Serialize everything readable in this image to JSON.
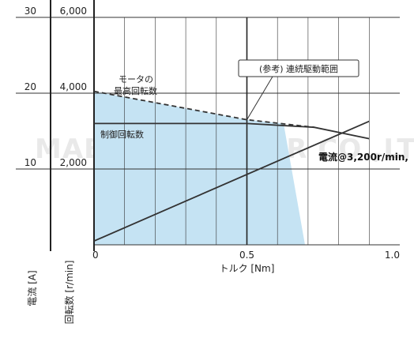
{
  "chart_data": {
    "type": "line",
    "xlabel": "トルク [Nm]",
    "ylabel_current": "電流 [A]",
    "ylabel_speed": "回転数 [r/min]",
    "xlim": [
      0,
      1.0
    ],
    "ylim_speed": [
      0,
      6000
    ],
    "ylim_current": [
      0,
      30
    ],
    "x_ticks": [
      "0",
      "0.5",
      "1.0"
    ],
    "speed_ticks": [
      "2,000",
      "4,000",
      "6,000"
    ],
    "current_ticks": [
      "10",
      "20",
      "30"
    ],
    "grid": true,
    "series": [
      {
        "name": "電流@3,200r/min",
        "style": "solid",
        "axis": "current",
        "x": [
          0,
          0.9
        ],
        "y": [
          0.5,
          16.3
        ]
      },
      {
        "name": "モータの最高回転数",
        "style": "dashed",
        "axis": "speed",
        "x": [
          0,
          0.5,
          0.72
        ],
        "y": [
          4050,
          3300,
          3100
        ]
      },
      {
        "name": "制御回転数",
        "style": "solid",
        "axis": "speed",
        "x": [
          0,
          0.5,
          0.72,
          0.9
        ],
        "y": [
          3200,
          3200,
          3100,
          2800
        ]
      }
    ],
    "region": {
      "name": "(参考) 連続駆動範囲",
      "color": "#c5e3f3",
      "x": [
        0,
        0,
        0.5,
        0.62,
        0.69,
        0
      ],
      "y": [
        0,
        4050,
        3300,
        3200,
        0,
        0
      ]
    },
    "annotations": {
      "max_speed": [
        "モータの",
        "最高回転数"
      ],
      "control_speed": "制御回転数",
      "current": "電流@3,200r/min,",
      "region": "(参考) 連続駆動範囲"
    },
    "colors": {
      "line": "#333333",
      "grid": "#333333",
      "fill": "#c5e3f3"
    }
  },
  "watermark": "MABUCHI MOTOR CO.,LTD."
}
